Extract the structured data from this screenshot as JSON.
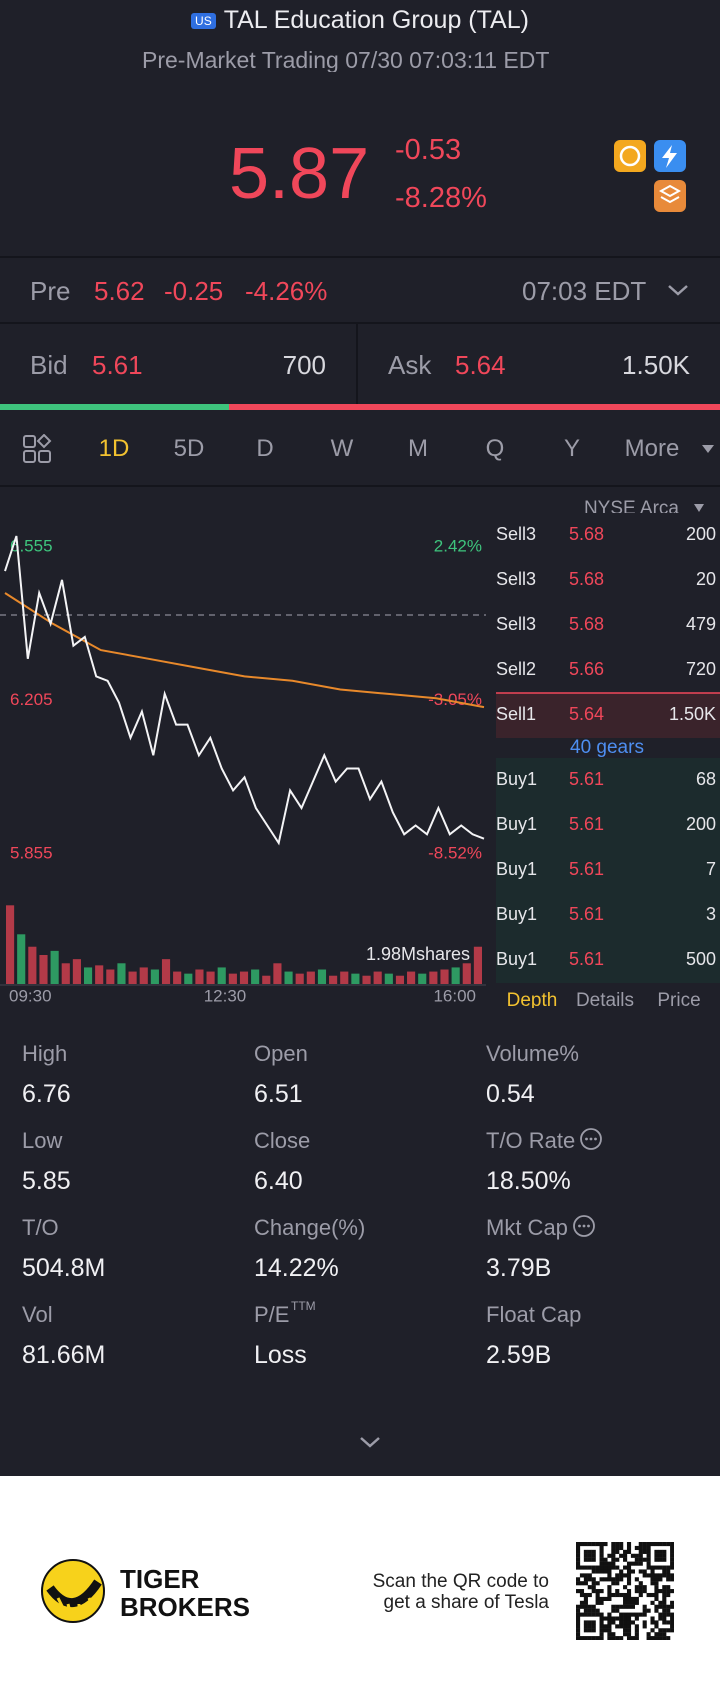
{
  "header": {
    "badge": "US",
    "title": "TAL Education Group (TAL)",
    "subtitle": "Pre-Market Trading 07/30 07:03:11 EDT"
  },
  "quote": {
    "price": "5.87",
    "change": "-0.53",
    "change_pct": "-8.28%"
  },
  "pre": {
    "label": "Pre",
    "price": "5.62",
    "change": "-0.25",
    "change_pct": "-4.26%",
    "time": "07:03 EDT"
  },
  "bid": {
    "label": "Bid",
    "price": "5.61",
    "size": 700
  },
  "ask": {
    "label": "Ask",
    "price": "5.64",
    "size": {
      "value": 1500,
      "label": "1.50K"
    }
  },
  "tabs": [
    "1D",
    "5D",
    "D",
    "W",
    "M",
    "Q",
    "Y",
    "More"
  ],
  "intraday": {
    "type": "line",
    "ylim": [
      5.855,
      6.555
    ],
    "yticks": [
      6.555,
      6.205,
      5.855
    ],
    "pct_labels": [
      "2.42%",
      "-3.05%",
      "-8.52%"
    ],
    "x_labels": [
      "09:30",
      "12:30",
      "16:00"
    ],
    "price": [
      6.5,
      6.58,
      6.3,
      6.45,
      6.38,
      6.48,
      6.33,
      6.35,
      6.26,
      6.25,
      6.2,
      6.12,
      6.18,
      6.08,
      6.22,
      6.15,
      6.15,
      6.08,
      6.12,
      6.05,
      6.0,
      6.03,
      5.96,
      5.92,
      5.88,
      6.0,
      5.96,
      6.02,
      6.08,
      6.02,
      6.05,
      6.05,
      5.98,
      6.02,
      5.95,
      5.9,
      5.92,
      5.9,
      5.96,
      5.9,
      5.92,
      5.9,
      5.89
    ],
    "average": [
      6.45,
      6.38,
      6.32,
      6.3,
      6.28,
      6.26,
      6.25,
      6.23,
      6.22,
      6.21,
      6.19
    ],
    "volume_label": "1.98Mshares",
    "volume_ylim": [
      0,
      1980000
    ],
    "volume": [
      1900000,
      1200000,
      900000,
      700000,
      800000,
      500000,
      600000,
      400000,
      450000,
      350000,
      500000,
      300000,
      400000,
      350000,
      600000,
      300000,
      250000,
      350000,
      300000,
      400000,
      250000,
      300000,
      350000,
      200000,
      500000,
      300000,
      250000,
      300000,
      350000,
      200000,
      300000,
      250000,
      200000,
      300000,
      250000,
      200000,
      300000,
      250000,
      300000,
      350000,
      400000,
      500000,
      900000
    ]
  },
  "order_book": {
    "exchange": "NYSE Arca",
    "sells": [
      {
        "label": "Sell3",
        "price": "5.68",
        "size": "200"
      },
      {
        "label": "Sell3",
        "price": "5.68",
        "size": "20"
      },
      {
        "label": "Sell3",
        "price": "5.68",
        "size": "479"
      },
      {
        "label": "Sell2",
        "price": "5.66",
        "size": "720"
      },
      {
        "label": "Sell1",
        "price": "5.64",
        "size": "1.50K"
      }
    ],
    "gears": "40 gears",
    "buys": [
      {
        "label": "Buy1",
        "price": "5.61",
        "size": "68"
      },
      {
        "label": "Buy1",
        "price": "5.61",
        "size": "200"
      },
      {
        "label": "Buy1",
        "price": "5.61",
        "size": "7"
      },
      {
        "label": "Buy1",
        "price": "5.61",
        "size": "3"
      },
      {
        "label": "Buy1",
        "price": "5.61",
        "size": "500"
      }
    ],
    "tabs": [
      "Depth",
      "Details",
      "Price"
    ]
  },
  "stats": [
    {
      "label": "High",
      "value": "6.76"
    },
    {
      "label": "Open",
      "value": "6.51"
    },
    {
      "label": "Volume%",
      "value": "0.54"
    },
    {
      "label": "Low",
      "value": "5.85"
    },
    {
      "label": "Close",
      "value": "6.40"
    },
    {
      "label": "T/O Rate",
      "value": "18.50%"
    },
    {
      "label": "T/O",
      "value": "504.8M"
    },
    {
      "label": "Change(%)",
      "value": "14.22%"
    },
    {
      "label": "Mkt Cap",
      "value": "3.79B"
    },
    {
      "label": "Vol",
      "value": "81.66M"
    },
    {
      "label": "P/E",
      "sup": "TTM",
      "value": "Loss"
    },
    {
      "label": "Float Cap",
      "value": "2.59B"
    }
  ],
  "footer": {
    "brand_line1": "TIGER",
    "brand_line2": "BROKERS",
    "scan_line1": "Scan the QR code to",
    "scan_line2": "get a share of Tesla"
  }
}
